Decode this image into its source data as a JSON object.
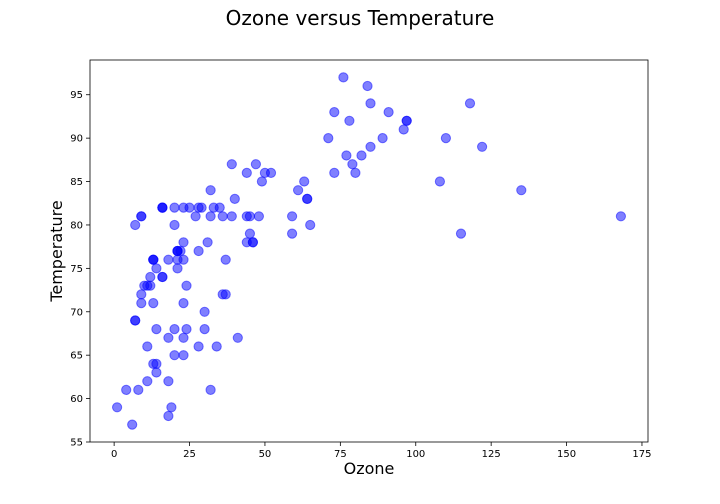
{
  "chart_data": {
    "type": "scatter",
    "title": "Ozone versus Temperature",
    "xlabel": "Ozone",
    "ylabel": "Temperature",
    "xlim": [
      -8,
      177
    ],
    "ylim": [
      55,
      99
    ],
    "xticks": [
      0,
      25,
      50,
      75,
      100,
      125,
      150,
      175
    ],
    "yticks": [
      55,
      60,
      65,
      70,
      75,
      80,
      85,
      90,
      95
    ],
    "grid": false,
    "legend": "none",
    "marker_color": "#0000ff",
    "marker_opacity": 0.5,
    "points": [
      [
        41,
        67
      ],
      [
        36,
        72
      ],
      [
        12,
        74
      ],
      [
        18,
        62
      ],
      [
        28,
        66
      ],
      [
        23,
        65
      ],
      [
        19,
        59
      ],
      [
        8,
        61
      ],
      [
        7,
        69
      ],
      [
        16,
        74
      ],
      [
        11,
        66
      ],
      [
        14,
        68
      ],
      [
        18,
        58
      ],
      [
        14,
        64
      ],
      [
        34,
        66
      ],
      [
        6,
        57
      ],
      [
        30,
        68
      ],
      [
        11,
        62
      ],
      [
        1,
        59
      ],
      [
        11,
        73
      ],
      [
        4,
        61
      ],
      [
        32,
        61
      ],
      [
        23,
        67
      ],
      [
        45,
        81
      ],
      [
        115,
        79
      ],
      [
        37,
        76
      ],
      [
        29,
        82
      ],
      [
        71,
        90
      ],
      [
        39,
        87
      ],
      [
        23,
        82
      ],
      [
        21,
        77
      ],
      [
        37,
        72
      ],
      [
        20,
        65
      ],
      [
        12,
        73
      ],
      [
        13,
        76
      ],
      [
        135,
        84
      ],
      [
        49,
        85
      ],
      [
        32,
        81
      ],
      [
        64,
        83
      ],
      [
        40,
        83
      ],
      [
        77,
        88
      ],
      [
        97,
        92
      ],
      [
        97,
        92
      ],
      [
        85,
        89
      ],
      [
        10,
        73
      ],
      [
        27,
        81
      ],
      [
        7,
        80
      ],
      [
        48,
        81
      ],
      [
        35,
        82
      ],
      [
        61,
        84
      ],
      [
        79,
        87
      ],
      [
        63,
        85
      ],
      [
        16,
        74
      ],
      [
        80,
        86
      ],
      [
        108,
        85
      ],
      [
        20,
        82
      ],
      [
        52,
        86
      ],
      [
        82,
        88
      ],
      [
        50,
        86
      ],
      [
        64,
        83
      ],
      [
        59,
        81
      ],
      [
        39,
        81
      ],
      [
        9,
        81
      ],
      [
        16,
        82
      ],
      [
        122,
        89
      ],
      [
        89,
        90
      ],
      [
        110,
        90
      ],
      [
        44,
        86
      ],
      [
        28,
        82
      ],
      [
        65,
        80
      ],
      [
        22,
        77
      ],
      [
        59,
        79
      ],
      [
        23,
        76
      ],
      [
        31,
        78
      ],
      [
        44,
        78
      ],
      [
        21,
        77
      ],
      [
        9,
        72
      ],
      [
        45,
        79
      ],
      [
        168,
        81
      ],
      [
        73,
        86
      ],
      [
        76,
        97
      ],
      [
        118,
        94
      ],
      [
        84,
        96
      ],
      [
        85,
        94
      ],
      [
        96,
        91
      ],
      [
        78,
        92
      ],
      [
        73,
        93
      ],
      [
        91,
        93
      ],
      [
        47,
        87
      ],
      [
        32,
        84
      ],
      [
        20,
        80
      ],
      [
        23,
        78
      ],
      [
        21,
        75
      ],
      [
        24,
        73
      ],
      [
        44,
        81
      ],
      [
        21,
        76
      ],
      [
        28,
        77
      ],
      [
        9,
        71
      ],
      [
        13,
        71
      ],
      [
        46,
        78
      ],
      [
        18,
        67
      ],
      [
        13,
        76
      ],
      [
        24,
        68
      ],
      [
        16,
        82
      ],
      [
        13,
        64
      ],
      [
        23,
        71
      ],
      [
        36,
        81
      ],
      [
        7,
        69
      ],
      [
        14,
        63
      ],
      [
        30,
        70
      ],
      [
        14,
        75
      ],
      [
        18,
        76
      ],
      [
        20,
        68
      ],
      [
        13,
        76
      ],
      [
        9,
        81
      ],
      [
        25,
        82
      ],
      [
        46,
        78
      ],
      [
        33,
        82
      ],
      [
        16,
        82
      ],
      [
        21,
        77
      ]
    ]
  }
}
